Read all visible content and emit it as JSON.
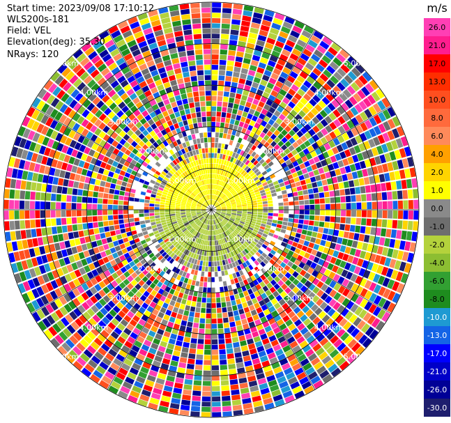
{
  "header": {
    "start_time": "Start time: 2023/09/08 17:10:12",
    "instrument": "WLS200s-181",
    "field": "Field: VEL",
    "elevation": "Elevation(deg): 35.30",
    "nrays": "NRays: 120"
  },
  "colorbar": {
    "unit": "m/s",
    "ticks": [
      "26.0",
      "21.0",
      "17.0",
      "13.0",
      "10.0",
      "8.0",
      "6.0",
      "4.0",
      "2.0",
      "1.0",
      "0.0",
      "-1.0",
      "-2.0",
      "-4.0",
      "-6.0",
      "-8.0",
      "-10.0",
      "-13.0",
      "-17.0",
      "-21.0",
      "-26.0",
      "-30.0"
    ],
    "colors": [
      "#ff3fb4",
      "#ff1d8e",
      "#ff0000",
      "#ff2e00",
      "#ff4f1f",
      "#ff6a3c",
      "#ff8a5a",
      "#ffa000",
      "#ffd400",
      "#ffff00",
      "#8a8a8a",
      "#6e6e6e",
      "#b4d23c",
      "#8cbe32",
      "#32a032",
      "#1e8c1e",
      "#1e9ad2",
      "#1464e6",
      "#0000ff",
      "#0000c8",
      "#000096",
      "#1e1e6e"
    ]
  },
  "chart_data": {
    "type": "heatmap",
    "subtype": "ppi-radar",
    "field": "VEL",
    "elevation_deg": 35.3,
    "nrays": 120,
    "range_ring_labels": [
      "1.00km",
      "2.00km",
      "3.00km",
      "4.00km",
      "5.00km"
    ],
    "range_rings_km": [
      1,
      2,
      3,
      4,
      5
    ],
    "max_range_km": 5,
    "near_field": {
      "north_half_velocity_ms": "2.0 to 4.0 (yellow)",
      "south_half_velocity_ms": "-2.0 to -6.0 (green)",
      "edge_velocity_ms": "about 0.0 (gray)"
    },
    "far_field": "noisy, all colour classes"
  }
}
